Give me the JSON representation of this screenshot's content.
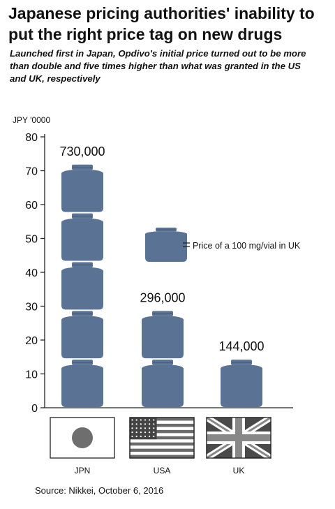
{
  "title": "Japanese pricing authorities' inability to put the right price tag on new drugs",
  "subtitle": "Launched first in Japan, Opdivo's initial price turned out to be more than double and five times higher than what was granted in the US and UK, respectively",
  "source": "Source: Nikkei, October 6, 2016",
  "colors": {
    "vial": "#5a7394",
    "vial_dark": "#48607f",
    "text": "#111111",
    "flag_red": "#6e6e6e"
  },
  "chart_data": {
    "type": "bar",
    "ylabel": "JPY '0000",
    "ylim": [
      0,
      80
    ],
    "yticks": [
      0,
      10,
      20,
      30,
      40,
      50,
      60,
      70,
      80
    ],
    "unit_value": 14.4,
    "unit_label": "Price of a 100 mg/vial in UK",
    "categories": [
      "JPN",
      "USA",
      "UK"
    ],
    "values": [
      73.0,
      29.6,
      14.4
    ],
    "data_labels": [
      "730,000",
      "296,000",
      "144,000"
    ],
    "vials": [
      5,
      2,
      1
    ],
    "flags": [
      "japan-flag",
      "usa-flag",
      "uk-flag"
    ]
  }
}
